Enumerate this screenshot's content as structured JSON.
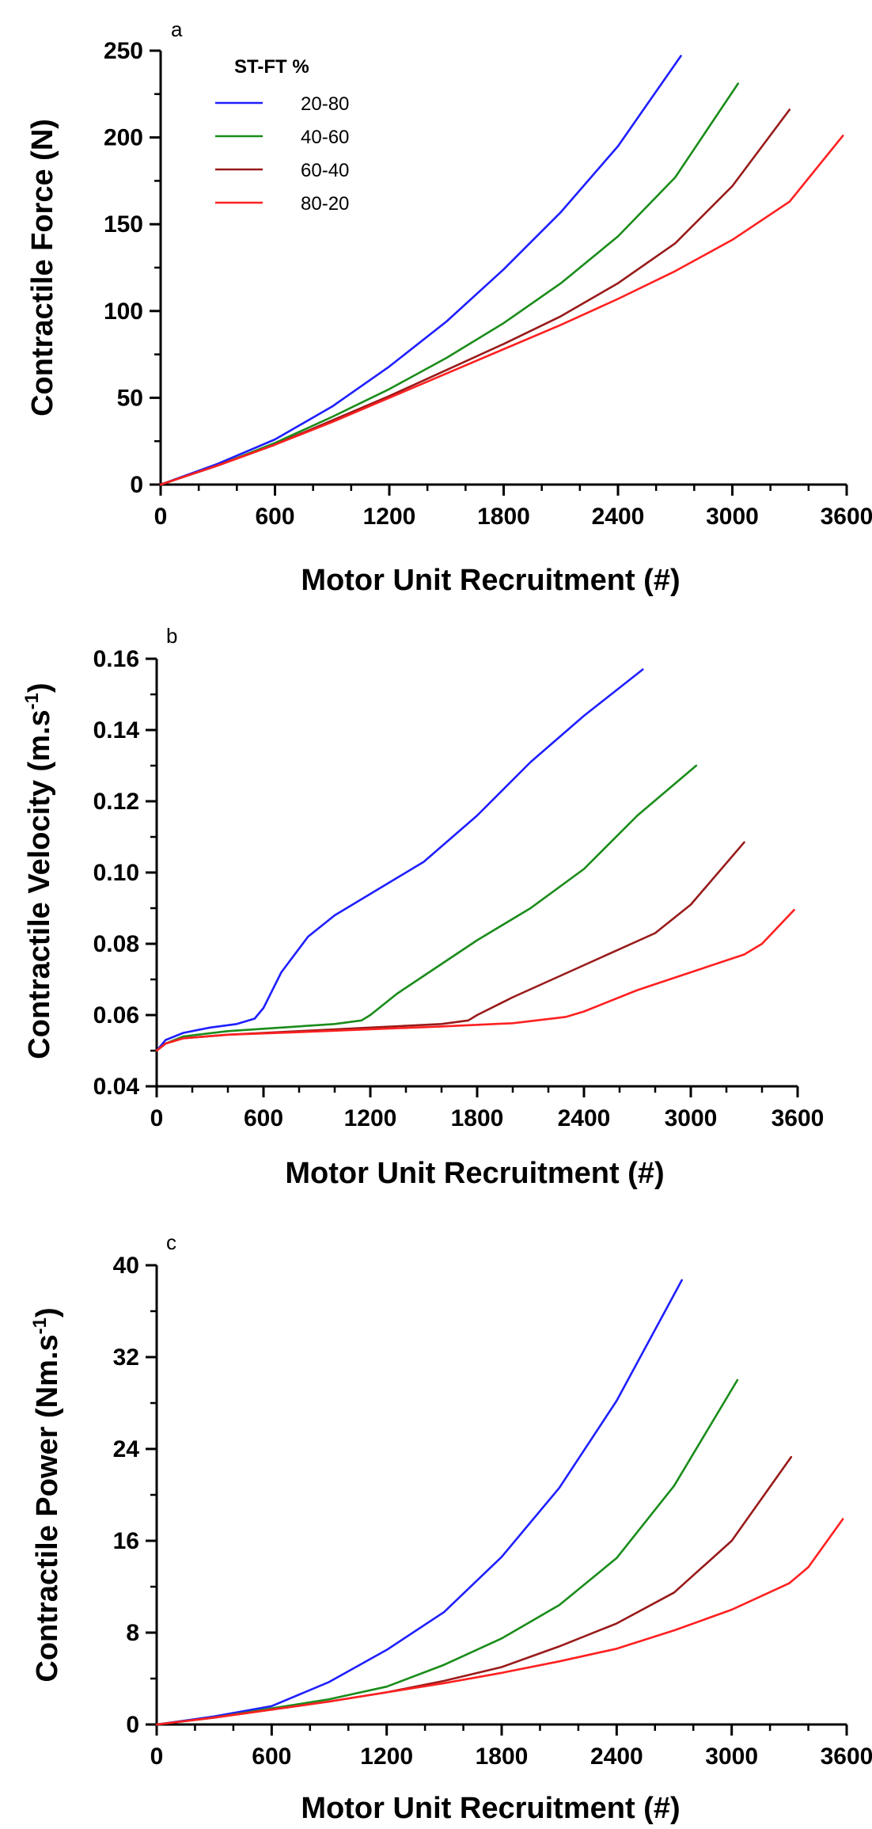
{
  "legend": {
    "title": "ST-FT %",
    "entries": [
      {
        "label": "20-80",
        "color": "#1f1fff"
      },
      {
        "label": "40-60",
        "color": "#1a8c1a"
      },
      {
        "label": "60-40",
        "color": "#991a1a"
      },
      {
        "label": "80-20",
        "color": "#ff2020"
      }
    ]
  },
  "chart_data": [
    {
      "type": "line",
      "panel": "a",
      "xlabel": "Motor Unit  Recruitment (#)",
      "ylabel": "Contractile Force (N)",
      "xlim": [
        0,
        3600
      ],
      "ylim": [
        0,
        250
      ],
      "xticks": [
        0,
        600,
        1200,
        1800,
        2400,
        3000,
        3600
      ],
      "yticks": [
        0,
        50,
        100,
        150,
        200,
        250
      ],
      "legend": "top-left",
      "series": [
        {
          "name": "20-80",
          "color": "#1f1fff",
          "x": [
            0,
            300,
            600,
            900,
            1200,
            1500,
            1800,
            2100,
            2400,
            2730
          ],
          "y": [
            0,
            12,
            26,
            45,
            68,
            94,
            124,
            157,
            195,
            247
          ]
        },
        {
          "name": "40-60",
          "color": "#1a8c1a",
          "x": [
            0,
            300,
            600,
            900,
            1200,
            1500,
            1800,
            2100,
            2400,
            2700,
            3030
          ],
          "y": [
            0,
            11,
            24,
            39,
            55,
            73,
            93,
            116,
            143,
            177,
            231
          ]
        },
        {
          "name": "60-40",
          "color": "#991a1a",
          "x": [
            0,
            300,
            600,
            900,
            1200,
            1500,
            1800,
            2100,
            2400,
            2700,
            3000,
            3300
          ],
          "y": [
            0,
            11,
            23,
            37,
            51,
            66,
            81,
            97,
            116,
            139,
            172,
            216
          ]
        },
        {
          "name": "80-20",
          "color": "#ff2020",
          "x": [
            0,
            300,
            600,
            900,
            1200,
            1500,
            1800,
            2100,
            2400,
            2700,
            3000,
            3300,
            3580
          ],
          "y": [
            0,
            11,
            23,
            36,
            50,
            64,
            78,
            92,
            107,
            123,
            141,
            163,
            201
          ]
        }
      ]
    },
    {
      "type": "line",
      "panel": "b",
      "xlabel": "Motor Unit  Recruitment (#)",
      "ylabel": "Contractile Velocity (m.s",
      "ylabel_superscript": "-1",
      "ylabel_suffix": ")",
      "xlim": [
        0,
        3600
      ],
      "ylim": [
        0.04,
        0.16
      ],
      "xticks": [
        0,
        600,
        1200,
        1800,
        2400,
        3000,
        3600
      ],
      "yticks": [
        0.04,
        0.06,
        0.08,
        0.1,
        0.12,
        0.14,
        0.16
      ],
      "ytick_labels": [
        "0.04",
        "0.06",
        "0.08",
        "0.10",
        "0.12",
        "0.14",
        "0.16"
      ],
      "series": [
        {
          "name": "20-80",
          "color": "#1f1fff",
          "x": [
            0,
            50,
            150,
            300,
            450,
            550,
            600,
            700,
            850,
            1000,
            1200,
            1500,
            1800,
            2100,
            2400,
            2730
          ],
          "y": [
            0.05,
            0.053,
            0.055,
            0.0565,
            0.0575,
            0.059,
            0.062,
            0.072,
            0.082,
            0.088,
            0.094,
            0.103,
            0.116,
            0.131,
            0.144,
            0.157
          ]
        },
        {
          "name": "40-60",
          "color": "#1a8c1a",
          "x": [
            0,
            50,
            150,
            400,
            700,
            1000,
            1150,
            1200,
            1350,
            1500,
            1800,
            2100,
            2400,
            2700,
            3030
          ],
          "y": [
            0.05,
            0.052,
            0.054,
            0.0555,
            0.0565,
            0.0575,
            0.0585,
            0.06,
            0.066,
            0.071,
            0.081,
            0.09,
            0.101,
            0.116,
            0.13
          ]
        },
        {
          "name": "60-40",
          "color": "#991a1a",
          "x": [
            0,
            50,
            150,
            400,
            800,
            1200,
            1600,
            1750,
            1800,
            2000,
            2400,
            2800,
            3000,
            3300
          ],
          "y": [
            0.05,
            0.052,
            0.0535,
            0.0545,
            0.0555,
            0.0565,
            0.0575,
            0.0585,
            0.06,
            0.065,
            0.074,
            0.083,
            0.091,
            0.1085
          ]
        },
        {
          "name": "80-20",
          "color": "#ff2020",
          "x": [
            0,
            50,
            150,
            400,
            800,
            1200,
            1600,
            2000,
            2300,
            2400,
            2700,
            3000,
            3300,
            3400,
            3580
          ],
          "y": [
            0.05,
            0.052,
            0.0535,
            0.0545,
            0.0552,
            0.056,
            0.0568,
            0.0577,
            0.0595,
            0.061,
            0.067,
            0.072,
            0.077,
            0.08,
            0.0895
          ]
        }
      ]
    },
    {
      "type": "line",
      "panel": "c",
      "xlabel": "Motor Unit  Recruitment (#)",
      "ylabel": "Contractile Power (Nm.s",
      "ylabel_superscript": "-1",
      "ylabel_suffix": ")",
      "xlim": [
        0,
        3600
      ],
      "ylim": [
        0,
        40
      ],
      "xticks": [
        0,
        600,
        1200,
        1800,
        2400,
        3000,
        3600
      ],
      "yticks": [
        0,
        8,
        16,
        24,
        32,
        40
      ],
      "series": [
        {
          "name": "20-80",
          "color": "#1f1fff",
          "x": [
            0,
            300,
            600,
            900,
            1200,
            1500,
            1800,
            2100,
            2400,
            2740
          ],
          "y": [
            0,
            0.7,
            1.6,
            3.7,
            6.5,
            9.8,
            14.6,
            20.6,
            28.2,
            38.7
          ]
        },
        {
          "name": "40-60",
          "color": "#1a8c1a",
          "x": [
            0,
            300,
            600,
            900,
            1200,
            1500,
            1800,
            2100,
            2400,
            2700,
            3030
          ],
          "y": [
            0,
            0.6,
            1.4,
            2.2,
            3.3,
            5.2,
            7.5,
            10.4,
            14.5,
            20.8,
            30.0
          ]
        },
        {
          "name": "60-40",
          "color": "#991a1a",
          "x": [
            0,
            300,
            600,
            900,
            1200,
            1500,
            1800,
            2100,
            2400,
            2700,
            3000,
            3310
          ],
          "y": [
            0,
            0.6,
            1.3,
            2.0,
            2.8,
            3.8,
            5.0,
            6.8,
            8.8,
            11.5,
            16.0,
            23.3
          ]
        },
        {
          "name": "80-20",
          "color": "#ff2020",
          "x": [
            0,
            300,
            600,
            900,
            1200,
            1500,
            1800,
            2100,
            2400,
            2700,
            3000,
            3300,
            3400,
            3580
          ],
          "y": [
            0,
            0.6,
            1.3,
            2.0,
            2.8,
            3.6,
            4.5,
            5.5,
            6.6,
            8.2,
            10.0,
            12.3,
            13.7,
            17.9
          ]
        }
      ]
    }
  ]
}
